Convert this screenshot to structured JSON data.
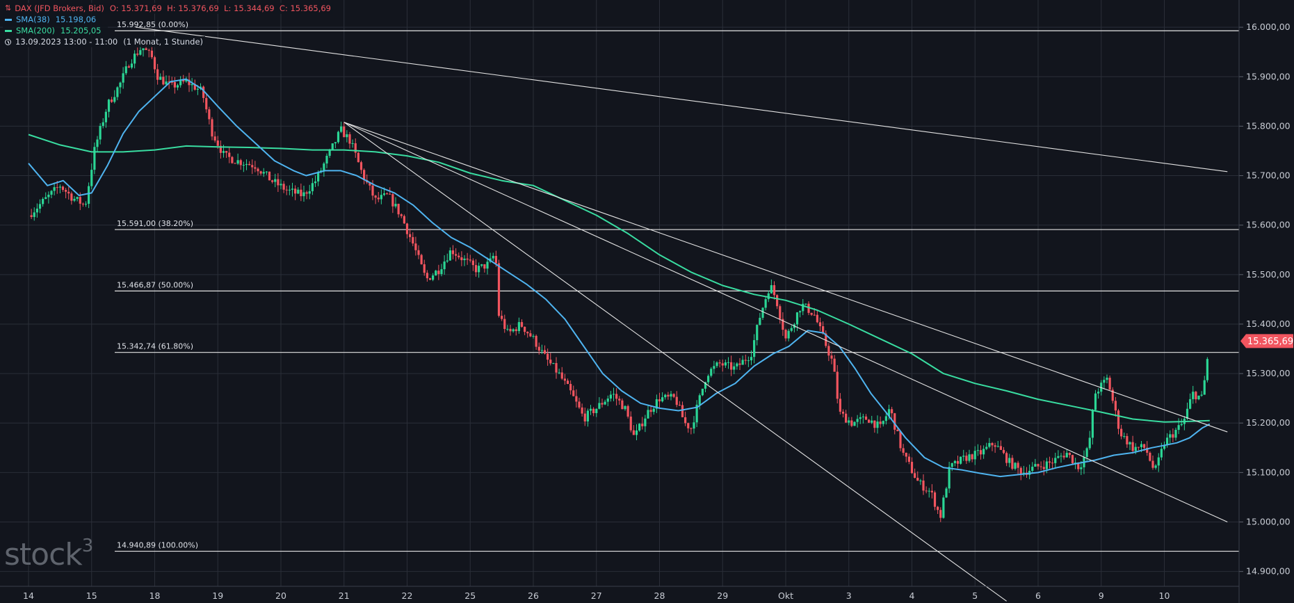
{
  "header": {
    "instrument": "DAX (JFD Brokers, Bid)",
    "ohlc": "O: 15.371,69  H: 15.376,69  L: 15.344,69  C: 15.365,69",
    "sma38_label": "SMA(38)",
    "sma38_value": "15.198,06",
    "sma200_label": "SMA(200)",
    "sma200_value": "15.205,05",
    "period": "13.09.2023 13:00 - 11:00",
    "range_label": "(1 Monat, 1 Stunde)"
  },
  "watermark": {
    "text": "stock",
    "sup": "3"
  },
  "colors": {
    "background": "#12151d",
    "grid": "#2a2e38",
    "up": "#2bd695",
    "down": "#f2555f",
    "sma38": "#4fb4f0",
    "sma200": "#39dda1",
    "lines": "#e4e4e4",
    "text": "#c8ccd4",
    "price_badge": "#f2555f"
  },
  "chart_data": {
    "type": "candlestick",
    "y_range": [
      14870,
      16055
    ],
    "y_ticks": [
      {
        "value": 16000,
        "label": "16.000,00"
      },
      {
        "value": 15900,
        "label": "15.900,00"
      },
      {
        "value": 15800,
        "label": "15.800,00"
      },
      {
        "value": 15700,
        "label": "15.700,00"
      },
      {
        "value": 15600,
        "label": "15.600,00"
      },
      {
        "value": 15500,
        "label": "15.500,00"
      },
      {
        "value": 15400,
        "label": "15.400,00"
      },
      {
        "value": 15300,
        "label": "15.300,00"
      },
      {
        "value": 15200,
        "label": "15.200,00"
      },
      {
        "value": 15100,
        "label": "15.100,00"
      },
      {
        "value": 15000,
        "label": "15.000,00"
      },
      {
        "value": 14900,
        "label": "14.900,00"
      }
    ],
    "x_ticks": [
      "14",
      "15",
      "18",
      "19",
      "20",
      "21",
      "22",
      "25",
      "26",
      "27",
      "28",
      "29",
      "Okt",
      "3",
      "4",
      "5",
      "6",
      "9",
      "10"
    ],
    "last_price": {
      "value": 15365.69,
      "label": "15.365,69"
    },
    "fib_levels": [
      {
        "value": 15992.85,
        "label": "15.992,85 (0.00%)"
      },
      {
        "value": 15591.0,
        "label": "15.591,00 (38.20%)"
      },
      {
        "value": 15466.87,
        "label": "15.466,87 (50.00%)"
      },
      {
        "value": 15342.74,
        "label": "15.342,74 (61.80%)"
      },
      {
        "value": 14940.89,
        "label": "14.940,89 (100.00%)"
      }
    ],
    "trend_lines": [
      {
        "from": [
          1.7,
          16000
        ],
        "to": [
          19.0,
          15708
        ]
      },
      {
        "from": [
          5.0,
          15808
        ],
        "to": [
          15.5,
          14840
        ]
      },
      {
        "from": [
          5.0,
          15808
        ],
        "to": [
          19.0,
          15000
        ]
      },
      {
        "from": [
          5.0,
          15808
        ],
        "to": [
          19.0,
          15182
        ]
      }
    ],
    "close_path": [
      [
        0.0,
        15620
      ],
      [
        0.25,
        15650
      ],
      [
        0.5,
        15680
      ],
      [
        0.7,
        15655
      ],
      [
        0.9,
        15640
      ],
      [
        1.05,
        15755
      ],
      [
        1.25,
        15842
      ],
      [
        1.45,
        15885
      ],
      [
        1.6,
        15930
      ],
      [
        1.8,
        15960
      ],
      [
        1.95,
        15940
      ],
      [
        2.05,
        15900
      ],
      [
        2.25,
        15880
      ],
      [
        2.5,
        15890
      ],
      [
        2.75,
        15870
      ],
      [
        2.9,
        15790
      ],
      [
        3.1,
        15740
      ],
      [
        3.3,
        15730
      ],
      [
        3.6,
        15720
      ],
      [
        3.85,
        15690
      ],
      [
        4.1,
        15670
      ],
      [
        4.35,
        15660
      ],
      [
        4.55,
        15690
      ],
      [
        4.75,
        15740
      ],
      [
        4.95,
        15792
      ],
      [
        5.1,
        15770
      ],
      [
        5.3,
        15700
      ],
      [
        5.5,
        15650
      ],
      [
        5.7,
        15660
      ],
      [
        5.9,
        15620
      ],
      [
        6.1,
        15560
      ],
      [
        6.3,
        15490
      ],
      [
        6.5,
        15510
      ],
      [
        6.7,
        15550
      ],
      [
        6.9,
        15530
      ],
      [
        7.1,
        15510
      ],
      [
        7.3,
        15522
      ],
      [
        7.4,
        15545
      ],
      [
        7.45,
        15420
      ],
      [
        7.6,
        15380
      ],
      [
        7.8,
        15400
      ],
      [
        8.0,
        15370
      ],
      [
        8.2,
        15330
      ],
      [
        8.4,
        15300
      ],
      [
        8.6,
        15260
      ],
      [
        8.8,
        15210
      ],
      [
        9.0,
        15230
      ],
      [
        9.25,
        15260
      ],
      [
        9.45,
        15230
      ],
      [
        9.6,
        15170
      ],
      [
        9.8,
        15220
      ],
      [
        10.0,
        15250
      ],
      [
        10.25,
        15250
      ],
      [
        10.4,
        15200
      ],
      [
        10.5,
        15190
      ],
      [
        10.75,
        15300
      ],
      [
        10.95,
        15320
      ],
      [
        11.2,
        15310
      ],
      [
        11.45,
        15340
      ],
      [
        11.6,
        15420
      ],
      [
        11.75,
        15480
      ],
      [
        11.85,
        15450
      ],
      [
        12.0,
        15370
      ],
      [
        12.25,
        15440
      ],
      [
        12.45,
        15420
      ],
      [
        12.6,
        15370
      ],
      [
        12.75,
        15320
      ],
      [
        12.85,
        15220
      ],
      [
        13.05,
        15200
      ],
      [
        13.3,
        15210
      ],
      [
        13.5,
        15190
      ],
      [
        13.65,
        15230
      ],
      [
        13.85,
        15140
      ],
      [
        14.1,
        15080
      ],
      [
        14.3,
        15060
      ],
      [
        14.45,
        15010
      ],
      [
        14.6,
        15110
      ],
      [
        14.85,
        15130
      ],
      [
        15.1,
        15140
      ],
      [
        15.3,
        15160
      ],
      [
        15.55,
        15120
      ],
      [
        15.75,
        15100
      ],
      [
        15.95,
        15110
      ],
      [
        16.2,
        15120
      ],
      [
        16.45,
        15140
      ],
      [
        16.65,
        15110
      ],
      [
        16.8,
        15150
      ],
      [
        16.9,
        15260
      ],
      [
        17.1,
        15290
      ],
      [
        17.3,
        15180
      ],
      [
        17.5,
        15150
      ],
      [
        17.7,
        15150
      ],
      [
        17.85,
        15100
      ],
      [
        18.0,
        15160
      ],
      [
        18.15,
        15180
      ],
      [
        18.3,
        15200
      ],
      [
        18.45,
        15260
      ],
      [
        18.6,
        15250
      ],
      [
        18.72,
        15365
      ]
    ],
    "sma38": [
      [
        0.0,
        15725
      ],
      [
        0.3,
        15680
      ],
      [
        0.55,
        15690
      ],
      [
        0.8,
        15660
      ],
      [
        1.0,
        15665
      ],
      [
        1.25,
        15720
      ],
      [
        1.5,
        15785
      ],
      [
        1.75,
        15830
      ],
      [
        2.0,
        15860
      ],
      [
        2.25,
        15890
      ],
      [
        2.5,
        15895
      ],
      [
        2.75,
        15875
      ],
      [
        3.0,
        15840
      ],
      [
        3.3,
        15800
      ],
      [
        3.6,
        15765
      ],
      [
        3.9,
        15730
      ],
      [
        4.2,
        15710
      ],
      [
        4.4,
        15700
      ],
      [
        4.7,
        15710
      ],
      [
        4.95,
        15710
      ],
      [
        5.2,
        15700
      ],
      [
        5.5,
        15680
      ],
      [
        5.8,
        15665
      ],
      [
        6.1,
        15640
      ],
      [
        6.4,
        15605
      ],
      [
        6.7,
        15575
      ],
      [
        7.0,
        15555
      ],
      [
        7.3,
        15530
      ],
      [
        7.6,
        15505
      ],
      [
        7.9,
        15480
      ],
      [
        8.2,
        15450
      ],
      [
        8.5,
        15410
      ],
      [
        8.8,
        15355
      ],
      [
        9.1,
        15300
      ],
      [
        9.4,
        15265
      ],
      [
        9.7,
        15240
      ],
      [
        10.0,
        15230
      ],
      [
        10.3,
        15225
      ],
      [
        10.6,
        15232
      ],
      [
        10.9,
        15260
      ],
      [
        11.2,
        15280
      ],
      [
        11.5,
        15315
      ],
      [
        11.8,
        15340
      ],
      [
        12.05,
        15355
      ],
      [
        12.35,
        15387
      ],
      [
        12.6,
        15382
      ],
      [
        12.85,
        15355
      ],
      [
        13.1,
        15310
      ],
      [
        13.35,
        15260
      ],
      [
        13.6,
        15220
      ],
      [
        13.9,
        15170
      ],
      [
        14.2,
        15130
      ],
      [
        14.5,
        15110
      ],
      [
        14.8,
        15105
      ],
      [
        15.1,
        15098
      ],
      [
        15.4,
        15092
      ],
      [
        15.7,
        15096
      ],
      [
        16.0,
        15100
      ],
      [
        16.3,
        15110
      ],
      [
        16.6,
        15118
      ],
      [
        16.9,
        15125
      ],
      [
        17.2,
        15135
      ],
      [
        17.5,
        15140
      ],
      [
        17.8,
        15150
      ],
      [
        18.0,
        15155
      ],
      [
        18.2,
        15160
      ],
      [
        18.4,
        15170
      ],
      [
        18.6,
        15190
      ],
      [
        18.72,
        15198
      ]
    ],
    "sma200": [
      [
        0.0,
        15783
      ],
      [
        0.5,
        15762
      ],
      [
        1.0,
        15748
      ],
      [
        1.5,
        15748
      ],
      [
        2.0,
        15752
      ],
      [
        2.5,
        15760
      ],
      [
        3.0,
        15758
      ],
      [
        3.5,
        15757
      ],
      [
        4.0,
        15755
      ],
      [
        4.5,
        15752
      ],
      [
        5.0,
        15752
      ],
      [
        5.5,
        15748
      ],
      [
        6.0,
        15740
      ],
      [
        6.5,
        15727
      ],
      [
        7.0,
        15705
      ],
      [
        7.5,
        15690
      ],
      [
        8.0,
        15680
      ],
      [
        8.5,
        15650
      ],
      [
        9.0,
        15620
      ],
      [
        9.5,
        15583
      ],
      [
        10.0,
        15540
      ],
      [
        10.5,
        15505
      ],
      [
        11.0,
        15478
      ],
      [
        11.5,
        15460
      ],
      [
        12.0,
        15448
      ],
      [
        12.5,
        15428
      ],
      [
        13.0,
        15400
      ],
      [
        13.5,
        15370
      ],
      [
        14.0,
        15340
      ],
      [
        14.5,
        15300
      ],
      [
        15.0,
        15280
      ],
      [
        15.5,
        15265
      ],
      [
        16.0,
        15248
      ],
      [
        16.5,
        15235
      ],
      [
        17.0,
        15222
      ],
      [
        17.5,
        15208
      ],
      [
        18.0,
        15202
      ],
      [
        18.3,
        15203
      ],
      [
        18.72,
        15205
      ]
    ]
  }
}
